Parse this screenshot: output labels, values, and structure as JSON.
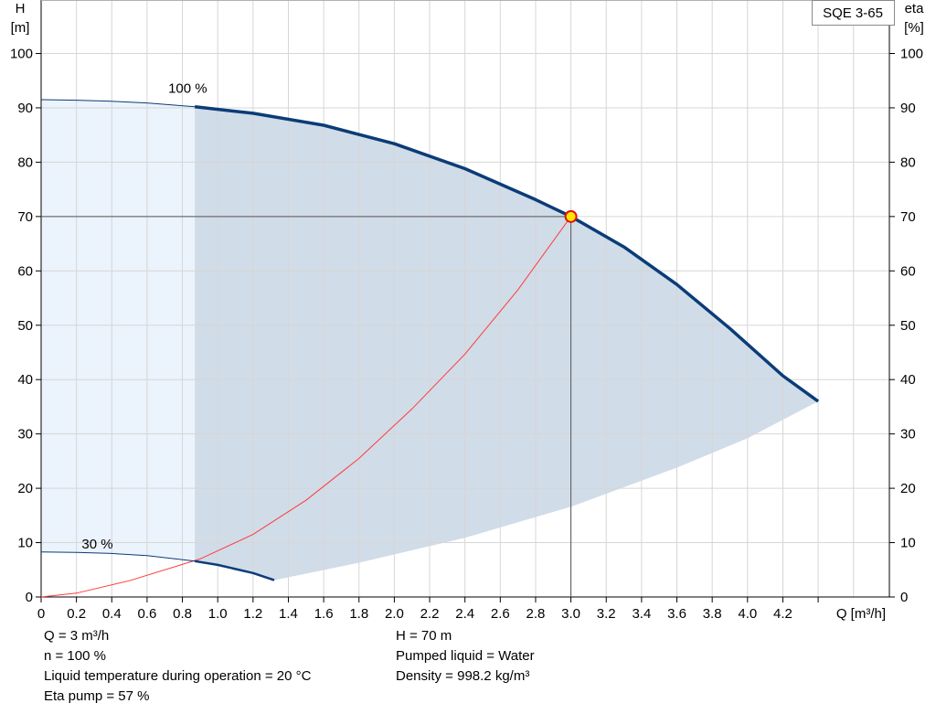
{
  "chart_data": {
    "type": "line",
    "title": "SQE 3-65",
    "xlabel": "Q [m³/h]",
    "ylabel_left": "H",
    "ylabel_left_unit": "[m]",
    "ylabel_right": "eta",
    "ylabel_right_unit": "[%]",
    "xlim": [
      0,
      4.6
    ],
    "ylim": [
      0,
      102
    ],
    "x_ticks": [
      0,
      0.2,
      0.4,
      0.6,
      0.8,
      1.0,
      1.2,
      1.4,
      1.6,
      1.8,
      2.0,
      2.2,
      2.4,
      2.6,
      2.8,
      3.0,
      3.2,
      3.4,
      3.6,
      3.8,
      4.0,
      4.2
    ],
    "x_tick_labels": [
      "0",
      "0.2",
      "0.4",
      "0.6",
      "0.8",
      "1.0",
      "1.2",
      "1.4",
      "1.6",
      "1.8",
      "2.0",
      "2.2",
      "2.4",
      "2.6",
      "2.8",
      "3.0",
      "3.2",
      "3.4",
      "3.6",
      "3.8",
      "4.0",
      "4.2"
    ],
    "y_ticks": [
      0,
      10,
      20,
      30,
      40,
      50,
      60,
      70,
      80,
      90,
      100
    ],
    "y_tick_labels": [
      "0",
      "10",
      "20",
      "30",
      "40",
      "50",
      "60",
      "70",
      "80",
      "90",
      "100"
    ],
    "grid": true,
    "curve_labels": {
      "max_speed": "100 %",
      "min_speed": "30 %"
    },
    "series": [
      {
        "name": "100 %",
        "role": "head_max",
        "color": "#0b3c78",
        "x": [
          0,
          0.2,
          0.4,
          0.6,
          0.87,
          1.2,
          1.6,
          2.0,
          2.4,
          2.8,
          3.0,
          3.3,
          3.6,
          3.9,
          4.2,
          4.4
        ],
        "y": [
          91.5,
          91.4,
          91.2,
          90.9,
          90.2,
          89.0,
          86.8,
          83.4,
          78.8,
          73.1,
          70.0,
          64.4,
          57.5,
          49.4,
          40.7,
          36.0
        ]
      },
      {
        "name": "30 %",
        "role": "head_min",
        "color": "#0b3c78",
        "x": [
          0,
          0.2,
          0.4,
          0.6,
          0.87,
          1.0,
          1.2,
          1.32
        ],
        "y": [
          8.3,
          8.2,
          8.0,
          7.6,
          6.6,
          5.9,
          4.4,
          3.1
        ]
      },
      {
        "name": "System",
        "role": "system_curve",
        "color": "#ff3b3b",
        "x": [
          0,
          0.2,
          0.5,
          0.9,
          1.2,
          1.5,
          1.8,
          2.1,
          2.4,
          2.7,
          3.0
        ],
        "y": [
          0,
          0.7,
          3.0,
          7.0,
          11.5,
          17.8,
          25.5,
          34.6,
          44.7,
          56.5,
          70.0
        ]
      },
      {
        "name": "Min curve",
        "role": "area_lower",
        "color": "#d0dce8",
        "x": [
          1.32,
          1.8,
          2.4,
          3.0,
          3.6,
          4.0,
          4.4
        ],
        "y": [
          3.1,
          6.3,
          10.9,
          16.6,
          23.8,
          29.2,
          36.0
        ]
      }
    ],
    "duty_point": {
      "q": 3.0,
      "h": 70
    },
    "colors": {
      "area_fill": "#d0dce8",
      "left_fill": "#ebf3fc",
      "head_curve": "#0b3c78",
      "system_curve": "#ff3b3b",
      "grid": "#d6d6d6",
      "duty_line": "#555555",
      "marker_fill": "#ffe600",
      "marker_stroke": "#e01010"
    }
  },
  "info": {
    "left": [
      "Q = 3 m³/h",
      "n = 100 %",
      "Liquid temperature during operation = 20 °C",
      "Eta pump = 57 %"
    ],
    "right": [
      "H = 70 m",
      "Pumped liquid = Water",
      "Density = 998.2 kg/m³"
    ]
  }
}
